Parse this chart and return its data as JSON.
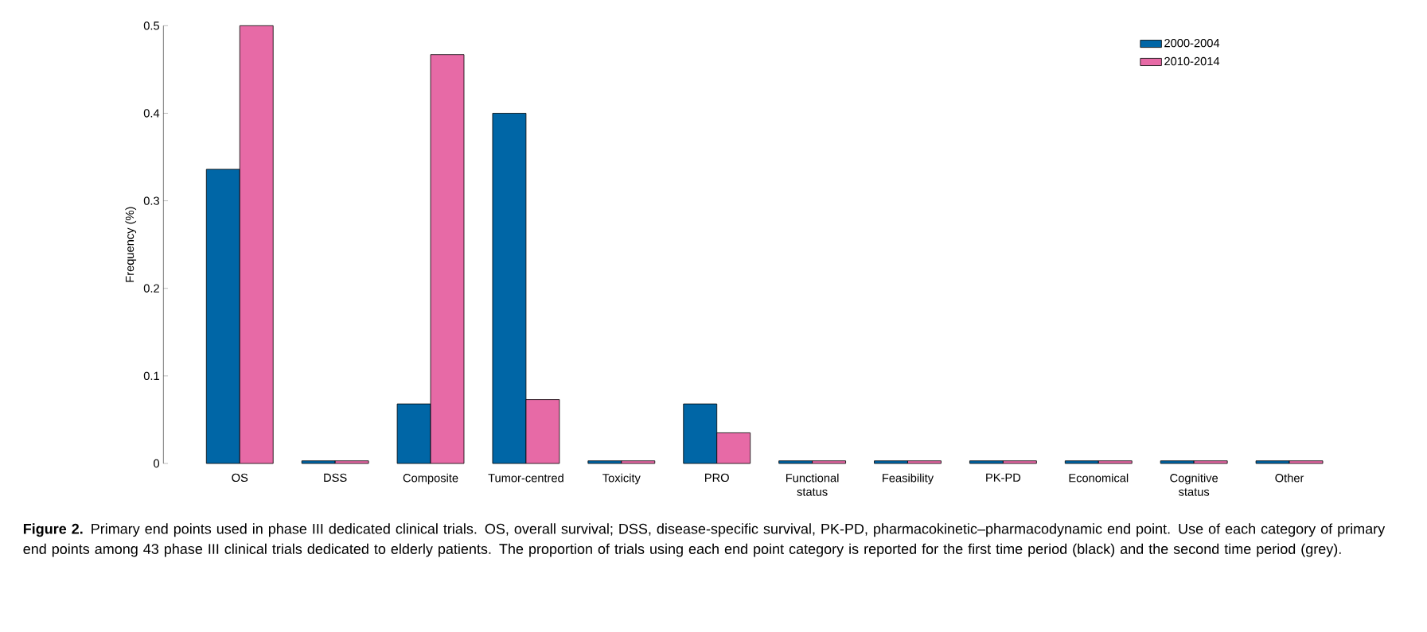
{
  "chart_data": {
    "type": "bar",
    "ylabel": "Frequency (%)",
    "categories": [
      "OS",
      "DSS",
      "Composite",
      "Tumor-centred",
      "Toxicity",
      "PRO",
      "Functional status",
      "Feasibility",
      "PK-PD",
      "Economical",
      "Cognitive status",
      "Other"
    ],
    "series": [
      {
        "name": "2000-2004",
        "color": "#0066a6",
        "values": [
          0.336,
          0.003,
          0.068,
          0.4,
          0.003,
          0.068,
          0.003,
          0.003,
          0.003,
          0.003,
          0.003,
          0.003
        ]
      },
      {
        "name": "2010-2014",
        "color": "#e76aa6",
        "values": [
          0.5,
          0.003,
          0.467,
          0.073,
          0.003,
          0.035,
          0.003,
          0.003,
          0.003,
          0.003,
          0.003,
          0.003
        ]
      }
    ],
    "ylim": [
      0,
      0.5
    ],
    "yticks": [
      0,
      0.1,
      0.2,
      0.3,
      0.4,
      0.5
    ],
    "grid": false,
    "legend": "top right",
    "annotations": [
      "**Figure 2.** Primary end points used in phase III dedicated clinical trials. OS, overall survival; DSS, disease-specific survival, PK-PD, pharmacokinetic–pharmacodynamic end point. Use of each category of primary end points among 43 phase III clinical trials dedicated to elderly patients. The proportion of trials using each end point category is reported for the first time period (black) and the second time period (grey)."
    ]
  }
}
